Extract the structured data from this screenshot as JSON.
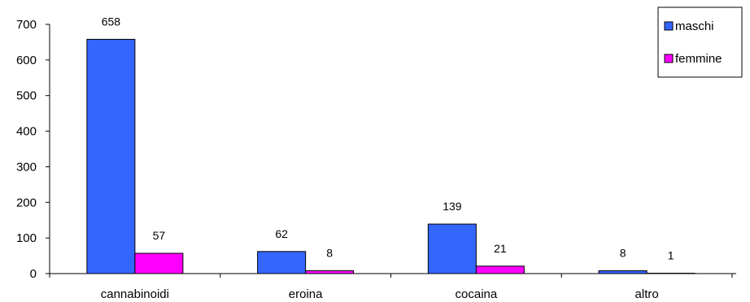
{
  "chart_data": {
    "type": "bar",
    "categories": [
      "cannabinoidi",
      "eroina",
      "cocaina",
      "altro"
    ],
    "series": [
      {
        "name": "maschi",
        "values": [
          658,
          62,
          139,
          8
        ],
        "color": "#3366ff"
      },
      {
        "name": "femmine",
        "values": [
          57,
          8,
          21,
          1
        ],
        "color": "#ff00ff"
      }
    ],
    "ylim": [
      0,
      700
    ],
    "yticks": [
      0,
      100,
      200,
      300,
      400,
      500,
      600,
      700
    ],
    "grid": false,
    "legend": "top-right"
  }
}
